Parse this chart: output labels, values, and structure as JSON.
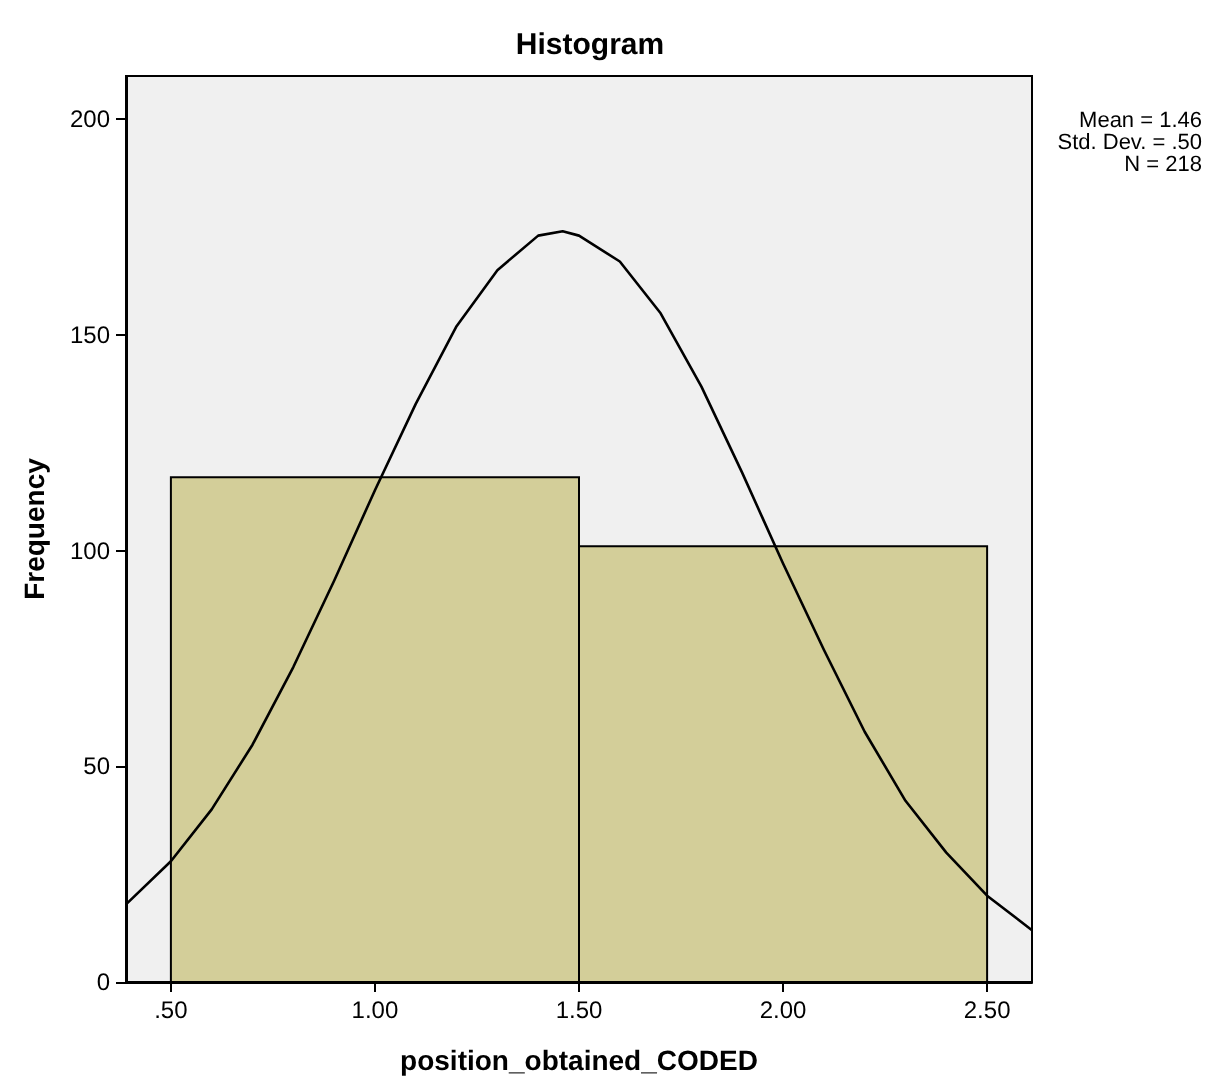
{
  "chart_data": {
    "type": "histogram",
    "title": "Histogram",
    "xlabel": "position_obtained_CODED",
    "ylabel": "Frequency",
    "bins": [
      0.5,
      1.5,
      2.5
    ],
    "values": [
      117,
      101
    ],
    "color": "#d3ce99",
    "series": [
      {
        "type": "line",
        "color": "#000000",
        "x": [
          0.39,
          0.5,
          0.6,
          0.7,
          0.8,
          0.9,
          1.0,
          1.1,
          1.2,
          1.3,
          1.4,
          1.46,
          1.5,
          1.6,
          1.7,
          1.8,
          1.9,
          2.0,
          2.1,
          2.2,
          2.3,
          2.4,
          2.5,
          2.61
        ],
        "values": [
          18,
          28,
          40,
          55,
          73,
          93,
          114,
          134,
          152,
          165,
          173,
          174,
          173,
          167,
          155,
          138,
          118,
          97,
          77,
          58,
          42,
          30,
          20,
          12
        ]
      }
    ],
    "xlim": [
      0.39,
      2.61
    ],
    "xticks": [
      {
        "value": 0.5,
        "label": ".50"
      },
      {
        "value": 1.0,
        "label": "1.00"
      },
      {
        "value": 1.5,
        "label": "1.50"
      },
      {
        "value": 2.0,
        "label": "2.00"
      },
      {
        "value": 2.5,
        "label": "2.50"
      }
    ],
    "ylim": [
      0,
      210
    ],
    "yticks": [
      0,
      50,
      100,
      150,
      200
    ],
    "annotations": [
      "Mean = 1.46",
      "Std. Dev. = .50",
      "N = 218"
    ],
    "grid": false,
    "marker": "none"
  }
}
